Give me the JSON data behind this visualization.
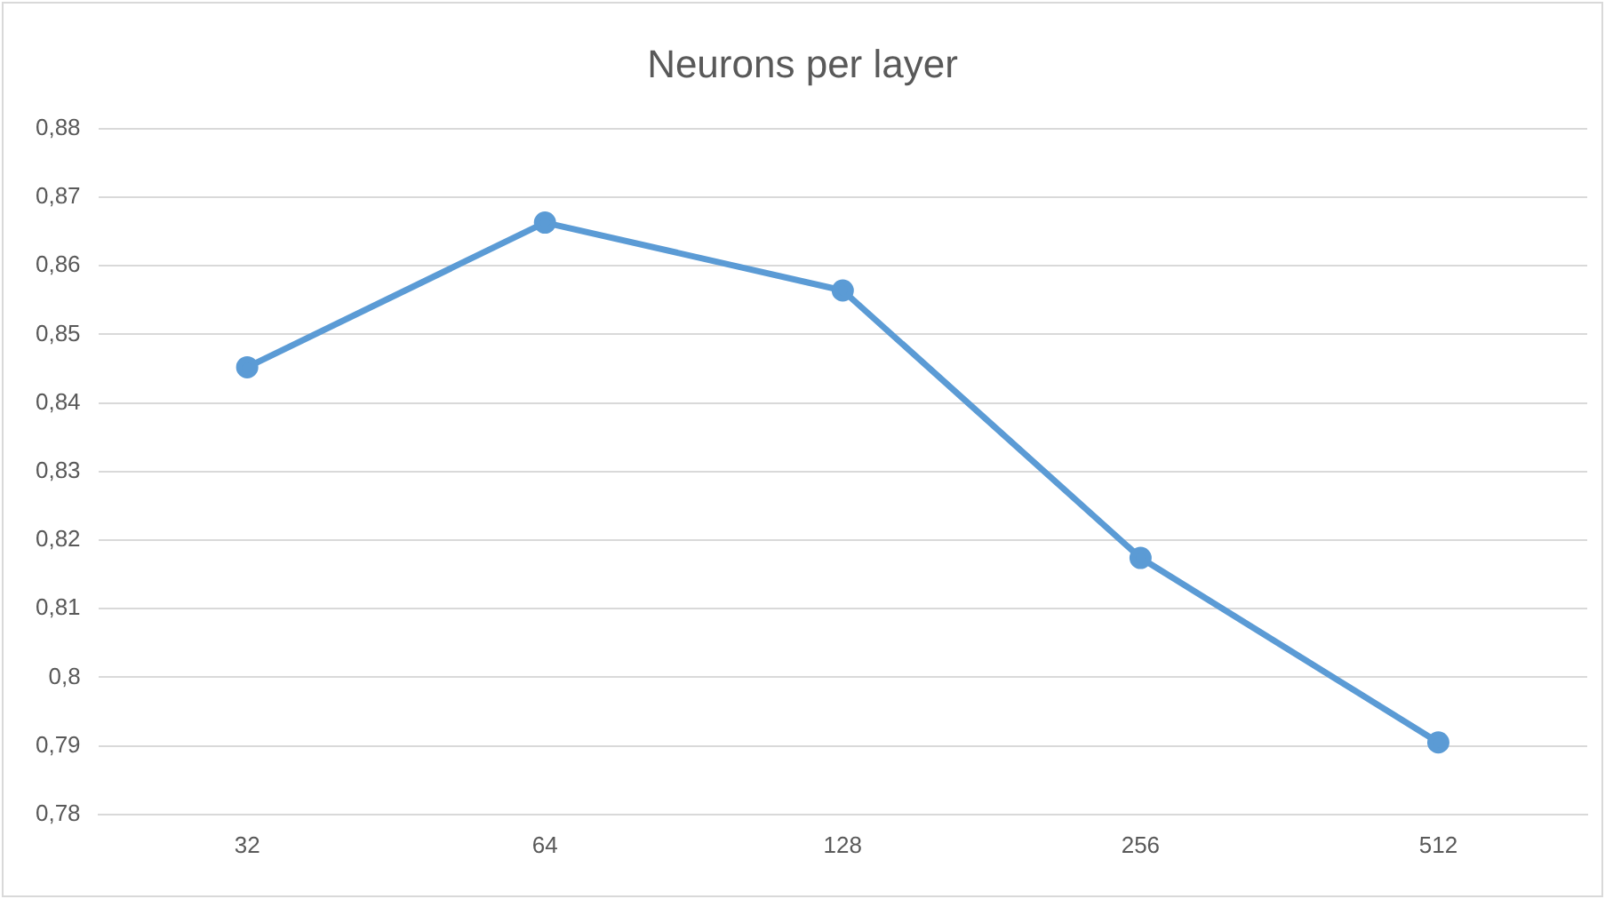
{
  "chart_data": {
    "type": "line",
    "title": "Neurons per layer",
    "categories": [
      "32",
      "64",
      "128",
      "256",
      "512"
    ],
    "series": [
      {
        "color": "#5b9bd5",
        "values": [
          0.8452,
          0.8663,
          0.8564,
          0.8174,
          0.7905
        ]
      }
    ],
    "ylim": [
      0.78,
      0.88
    ],
    "yticks": [
      {
        "value": 0.78,
        "label": "0,78"
      },
      {
        "value": 0.79,
        "label": "0,79"
      },
      {
        "value": 0.8,
        "label": "0,8"
      },
      {
        "value": 0.81,
        "label": "0,81"
      },
      {
        "value": 0.82,
        "label": "0,82"
      },
      {
        "value": 0.83,
        "label": "0,83"
      },
      {
        "value": 0.84,
        "label": "0,84"
      },
      {
        "value": 0.85,
        "label": "0,85"
      },
      {
        "value": 0.86,
        "label": "0,86"
      },
      {
        "value": 0.87,
        "label": "0,87"
      },
      {
        "value": 0.88,
        "label": "0,88"
      }
    ],
    "grid": "y",
    "legend": false,
    "marker": "circle",
    "line_style": "solid"
  }
}
